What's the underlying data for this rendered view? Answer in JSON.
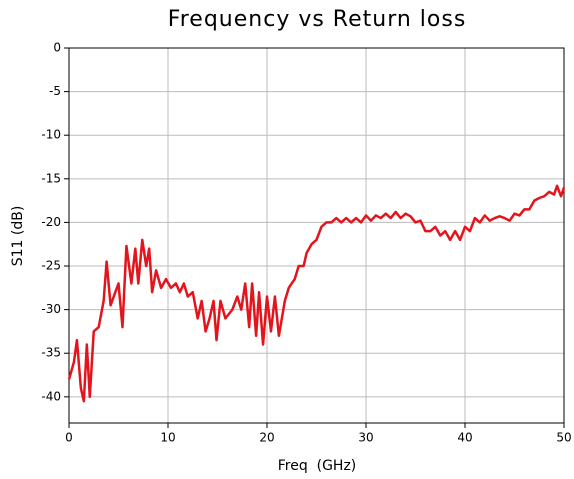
{
  "chart_data": {
    "type": "line",
    "title": "Frequency vs Return loss",
    "xlabel": "Freq  (GHz)",
    "ylabel": "S11 (dB)",
    "xlim": [
      0,
      50
    ],
    "ylim": [
      -43,
      0
    ],
    "xticks": [
      0,
      10,
      20,
      30,
      40,
      50
    ],
    "yticks": [
      0,
      -5,
      -10,
      -15,
      -20,
      -25,
      -30,
      -35,
      -40
    ],
    "grid": true,
    "x": [
      0,
      0.5,
      0.8,
      1.2,
      1.5,
      1.8,
      2.1,
      2.5,
      3,
      3.5,
      3.8,
      4.2,
      5,
      5.4,
      5.8,
      6.3,
      6.7,
      7,
      7.4,
      7.8,
      8.1,
      8.4,
      8.8,
      9.3,
      9.8,
      10.3,
      10.8,
      11.2,
      11.6,
      12,
      12.5,
      13,
      13.4,
      13.8,
      14.2,
      14.6,
      14.9,
      15.3,
      15.8,
      16.5,
      17,
      17.4,
      17.8,
      18.2,
      18.5,
      18.9,
      19.2,
      19.6,
      20,
      20.4,
      20.8,
      21.2,
      21.8,
      22.2,
      22.8,
      23.2,
      23.7,
      24,
      24.5,
      25,
      25.5,
      26,
      26.5,
      27,
      27.5,
      28,
      28.5,
      29,
      29.5,
      30,
      30.5,
      31,
      31.5,
      32,
      32.5,
      33,
      33.5,
      34,
      34.5,
      35,
      35.5,
      36,
      36.5,
      37,
      37.5,
      38,
      38.5,
      39,
      39.5,
      40,
      40.5,
      41,
      41.5,
      42,
      42.5,
      43,
      43.5,
      44,
      44.5,
      45,
      45.5,
      46,
      46.5,
      47,
      47.5,
      48,
      48.5,
      49,
      49.3,
      49.7,
      50
    ],
    "series": [
      {
        "name": "S11",
        "color": "#e3141b",
        "values": [
          -38,
          -36,
          -33.5,
          -39,
          -40.5,
          -34,
          -40,
          -32.5,
          -32,
          -29,
          -24.5,
          -29.5,
          -27,
          -32,
          -22.7,
          -27,
          -23,
          -27,
          -22,
          -25,
          -23,
          -28,
          -25.5,
          -27.5,
          -26.5,
          -27.5,
          -27,
          -28,
          -27,
          -28.5,
          -28,
          -31,
          -29,
          -32.5,
          -31,
          -29,
          -33.5,
          -29,
          -31,
          -30,
          -28.5,
          -30,
          -27,
          -32,
          -27,
          -33,
          -28,
          -34,
          -28.5,
          -32.5,
          -28.5,
          -33,
          -29,
          -27.5,
          -26.5,
          -25,
          -25,
          -23.5,
          -22.5,
          -22,
          -20.5,
          -20,
          -20,
          -19.5,
          -20,
          -19.5,
          -20,
          -19.5,
          -20,
          -19.2,
          -19.8,
          -19.2,
          -19.5,
          -19,
          -19.5,
          -18.8,
          -19.5,
          -19,
          -19.3,
          -20,
          -19.8,
          -21,
          -21,
          -20.5,
          -21.5,
          -21,
          -22,
          -21,
          -22,
          -20.5,
          -21,
          -19.5,
          -20,
          -19.2,
          -19.8,
          -19.5,
          -19.3,
          -19.5,
          -19.8,
          -19,
          -19.2,
          -18.5,
          -18.5,
          -17.5,
          -17.2,
          -17,
          -16.5,
          -16.8,
          -15.8,
          -17,
          -16
        ]
      }
    ]
  }
}
